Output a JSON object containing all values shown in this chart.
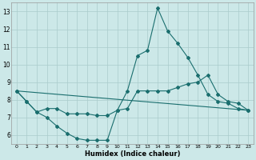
{
  "background_color": "#cce8e8",
  "grid_color": "#aacccc",
  "line_color": "#1a6e6e",
  "xlabel": "Humidex (Indice chaleur)",
  "ylim": [
    5.5,
    13.5
  ],
  "xlim": [
    -0.5,
    23.5
  ],
  "yticks": [
    6,
    7,
    8,
    9,
    10,
    11,
    12,
    13
  ],
  "xticks": [
    0,
    1,
    2,
    3,
    4,
    5,
    6,
    7,
    8,
    9,
    10,
    11,
    12,
    13,
    14,
    15,
    16,
    17,
    18,
    19,
    20,
    21,
    22,
    23
  ],
  "series": [
    {
      "x": [
        0,
        1,
        2,
        3,
        4,
        5,
        6,
        7,
        8,
        9,
        10,
        11,
        12,
        13,
        14,
        15,
        16,
        17,
        18,
        19,
        20,
        21,
        22,
        23
      ],
      "y": [
        8.5,
        7.9,
        7.3,
        7.0,
        6.5,
        6.1,
        5.8,
        5.7,
        5.7,
        5.7,
        7.4,
        8.5,
        10.5,
        10.8,
        13.2,
        11.9,
        11.2,
        10.4,
        9.4,
        8.3,
        7.9,
        7.8,
        7.5,
        7.4
      ],
      "has_markers": true
    },
    {
      "x": [
        0,
        1,
        2,
        3,
        4,
        5,
        6,
        7,
        8,
        9,
        10,
        11,
        12,
        13,
        14,
        15,
        16,
        17,
        18,
        19,
        20,
        21,
        22,
        23
      ],
      "y": [
        8.5,
        7.9,
        7.3,
        7.5,
        7.5,
        7.2,
        7.2,
        7.2,
        7.1,
        7.1,
        7.4,
        7.5,
        8.5,
        8.5,
        8.5,
        8.5,
        8.7,
        8.9,
        9.0,
        9.4,
        8.3,
        7.9,
        7.8,
        7.4
      ],
      "has_markers": true
    },
    {
      "x": [
        0,
        23
      ],
      "y": [
        8.5,
        7.4
      ],
      "has_markers": false
    }
  ],
  "figwidth": 3.2,
  "figheight": 2.0,
  "dpi": 100
}
